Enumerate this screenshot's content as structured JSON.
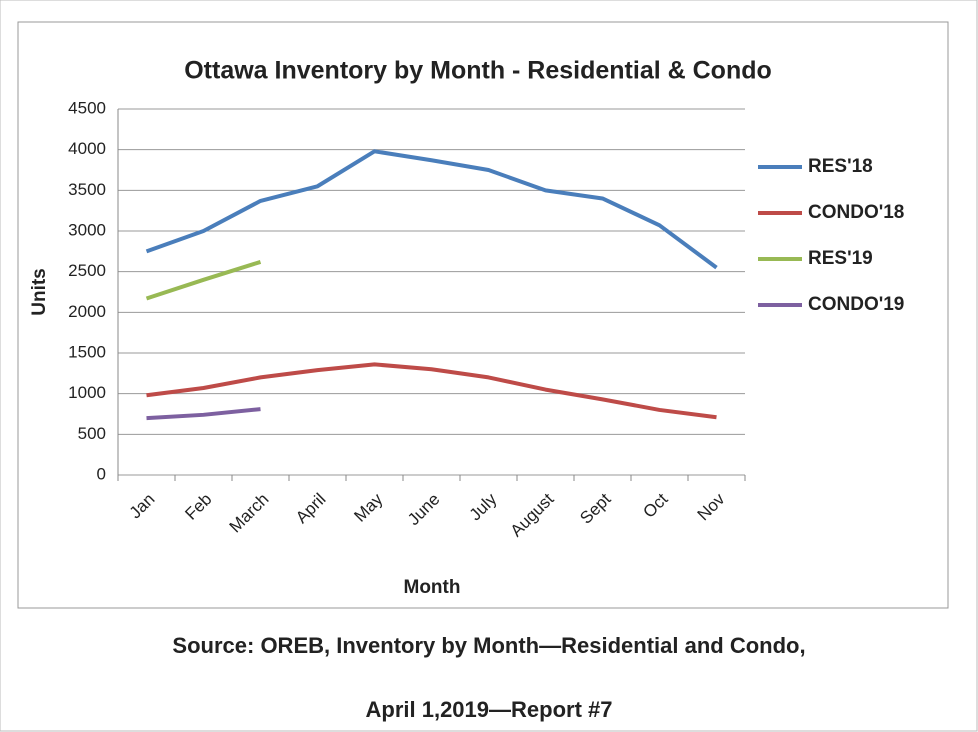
{
  "chart_data": {
    "type": "line",
    "title": "Ottawa Inventory by Month - Residential & Condo",
    "x_label": "Month",
    "y_label": "Units",
    "categories": [
      "Jan",
      "Feb",
      "March",
      "April",
      "May",
      "June",
      "July",
      "August",
      "Sept",
      "Oct",
      "Nov"
    ],
    "series": [
      {
        "name": "RES'18",
        "color": "#4a7ebb",
        "values": [
          2750,
          3000,
          3370,
          3550,
          3980,
          3870,
          3750,
          3500,
          3400,
          3070,
          2550
        ]
      },
      {
        "name": "CONDO'18",
        "color": "#be4b48",
        "values": [
          980,
          1070,
          1200,
          1290,
          1360,
          1300,
          1200,
          1050,
          930,
          800,
          710
        ]
      },
      {
        "name": "RES'19",
        "color": "#98b954",
        "values": [
          2170,
          2400,
          2620,
          null,
          null,
          null,
          null,
          null,
          null,
          null,
          null
        ]
      },
      {
        "name": "CONDO'19",
        "color": "#7d60a0",
        "values": [
          700,
          740,
          810,
          null,
          null,
          null,
          null,
          null,
          null,
          null,
          null
        ]
      }
    ],
    "ylim": [
      0,
      4500
    ],
    "yticks": [
      0,
      500,
      1000,
      1500,
      2000,
      2500,
      3000,
      3500,
      4000,
      4500
    ],
    "grid": true,
    "legend": "right"
  },
  "source": [
    "Source: OREB, Inventory by Month—Residential and Condo,",
    "April 1,2019—Report #7"
  ]
}
